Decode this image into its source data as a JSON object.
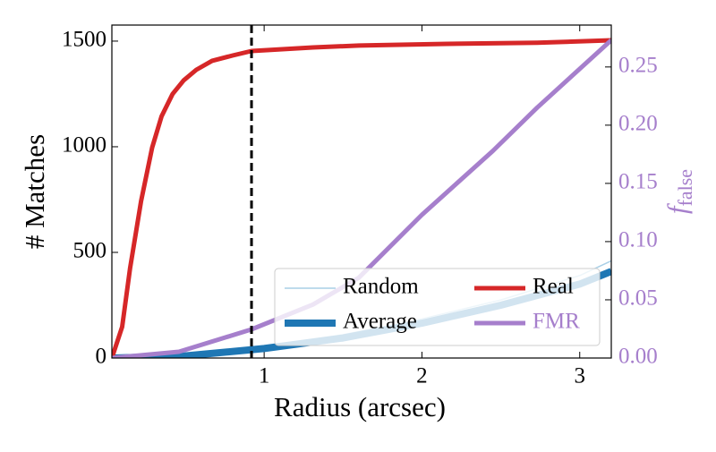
{
  "chart_data": {
    "type": "line",
    "xlabel": "Radius (arcsec)",
    "ylabel": "# Matches",
    "y2label": [
      "f",
      "false"
    ],
    "xlim": [
      0.035,
      3.2
    ],
    "xticks": [
      1,
      2,
      3
    ],
    "ylim": [
      0,
      1576
    ],
    "yticks": [
      0,
      500,
      1000,
      1500
    ],
    "y2lim": [
      0,
      0.286
    ],
    "y2ticks": [
      {
        "value": 0,
        "label": "0.00"
      },
      {
        "value": 0.05,
        "label": "0.05"
      },
      {
        "value": 0.1,
        "label": "0.10"
      },
      {
        "value": 0.15,
        "label": "0.15"
      },
      {
        "value": 0.2,
        "label": "0.20"
      },
      {
        "value": 0.25,
        "label": "0.25"
      }
    ],
    "y2color": "#a67fcc",
    "vline": 0.92,
    "legend": "lower right",
    "series": [
      {
        "name": "Random",
        "color": "#a9cfe6",
        "width": 1.5,
        "x": [
          0.035,
          0.5,
          1.0,
          1.5,
          2.0,
          2.5,
          3.0,
          3.2
        ],
        "values": [
          0,
          14,
          55,
          110,
          185,
          275,
          390,
          460
        ]
      },
      {
        "name": "Average",
        "color": "#1f77b4",
        "width": 8,
        "x": [
          0.035,
          0.5,
          1.0,
          1.5,
          2.0,
          2.5,
          3.0,
          3.2
        ],
        "values": [
          0,
          10,
          45,
          95,
          165,
          250,
          350,
          410
        ]
      },
      {
        "name": "Real",
        "color": "#d62728",
        "width": 5,
        "x": [
          0.035,
          0.1,
          0.15,
          0.22,
          0.29,
          0.35,
          0.42,
          0.49,
          0.57,
          0.67,
          0.8,
          0.92,
          1.03,
          1.31,
          1.6,
          2.16,
          2.73,
          3.2
        ],
        "values": [
          0,
          148,
          424,
          742,
          996,
          1144,
          1250,
          1314,
          1364,
          1407,
          1432,
          1453,
          1458,
          1470,
          1479,
          1487,
          1492,
          1504
        ]
      },
      {
        "name": "FMR",
        "color": "#a67fcc",
        "width": 5,
        "axis": "y2",
        "x": [
          0.035,
          0.46,
          0.92,
          1.31,
          1.6,
          2.0,
          2.45,
          2.73,
          3.2
        ],
        "values": [
          0,
          0.0054,
          0.0246,
          0.046,
          0.069,
          0.123,
          0.178,
          0.215,
          0.273
        ]
      }
    ]
  }
}
